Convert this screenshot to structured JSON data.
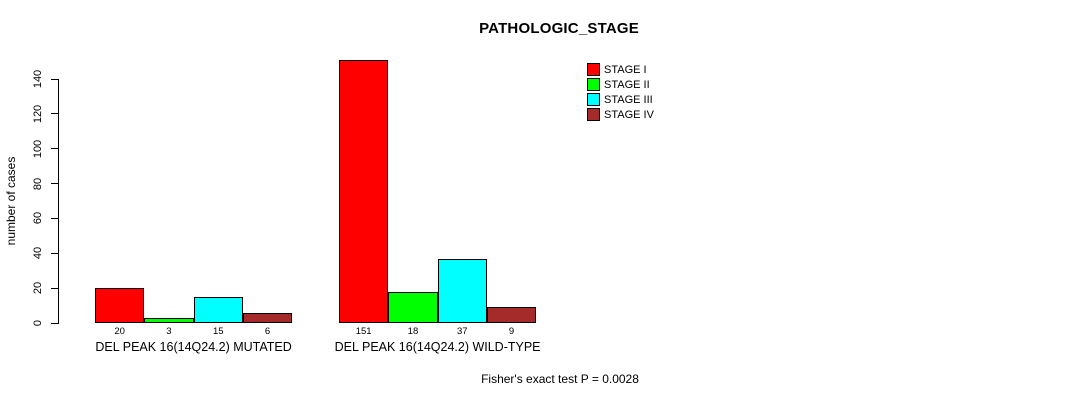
{
  "page": {
    "background": "#FFFFFF",
    "text_color": "#000000"
  },
  "chart_data": {
    "type": "bar",
    "title": "PATHOLOGIC_STAGE",
    "xlabel": "",
    "ylabel": "number of cases",
    "ylim": [
      0,
      140
    ],
    "yticks": [
      0,
      20,
      40,
      60,
      80,
      100,
      120,
      140
    ],
    "grid": false,
    "bar_value_labels_shown": true,
    "legend_position": "top-right",
    "categories": [
      "DEL PEAK 16(14Q24.2) MUTATED",
      "DEL PEAK 16(14Q24.2) WILD-TYPE"
    ],
    "series": [
      {
        "name": "STAGE I",
        "color": "#FF0000",
        "values": [
          20,
          151
        ]
      },
      {
        "name": "STAGE II",
        "color": "#00FF00",
        "values": [
          3,
          18
        ]
      },
      {
        "name": "STAGE III",
        "color": "#00FFFF",
        "values": [
          15,
          37
        ]
      },
      {
        "name": "STAGE IV",
        "color": "#A52A2A",
        "values": [
          6,
          9
        ]
      }
    ],
    "annotation": "Fisher's exact test P = 0.0028"
  }
}
